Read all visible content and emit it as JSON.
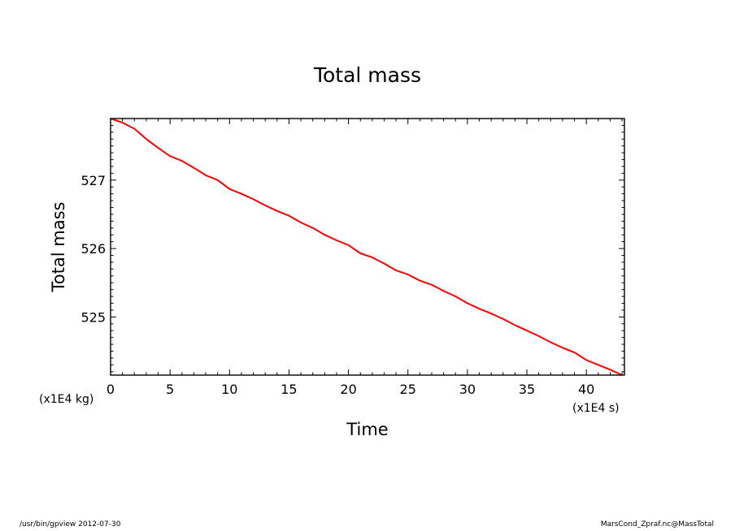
{
  "chart_data": {
    "type": "line",
    "title": "Total mass",
    "xlabel": "Time",
    "ylabel": "Total mass",
    "x_scale_note": "(x1E4 s)",
    "y_scale_note": "(x1E4 kg)",
    "xlim": [
      0,
      43.2
    ],
    "ylim": [
      524.15,
      527.9
    ],
    "x_ticks": [
      0,
      5,
      10,
      15,
      20,
      25,
      30,
      35,
      40
    ],
    "y_ticks": [
      525,
      526,
      527
    ],
    "grid": false,
    "legend": "none",
    "series": [
      {
        "color": "#ff0000",
        "x": [
          0,
          1,
          2,
          3,
          4,
          5,
          6,
          7,
          8,
          9,
          10,
          11,
          12,
          13,
          14,
          15,
          16,
          17,
          18,
          19,
          20,
          21,
          22,
          23,
          24,
          25,
          26,
          27,
          28,
          29,
          30,
          31,
          32,
          33,
          34,
          35,
          36,
          37,
          38,
          39,
          40,
          41,
          42,
          43
        ],
        "y": [
          527.9,
          527.84,
          527.75,
          527.6,
          527.47,
          527.35,
          527.28,
          527.18,
          527.07,
          527.0,
          526.87,
          526.8,
          526.72,
          526.63,
          526.55,
          526.48,
          526.38,
          526.3,
          526.2,
          526.12,
          526.05,
          525.93,
          525.87,
          525.78,
          525.68,
          525.62,
          525.53,
          525.47,
          525.38,
          525.3,
          525.2,
          525.12,
          525.05,
          524.97,
          524.88,
          524.8,
          524.72,
          524.63,
          524.55,
          524.48,
          524.37,
          524.3,
          524.23,
          524.15
        ]
      }
    ]
  },
  "footer": {
    "left": "/usr/bin/gpview  2012-07-30",
    "right": "MarsCond_Zpraf.nc@MassTotal"
  }
}
